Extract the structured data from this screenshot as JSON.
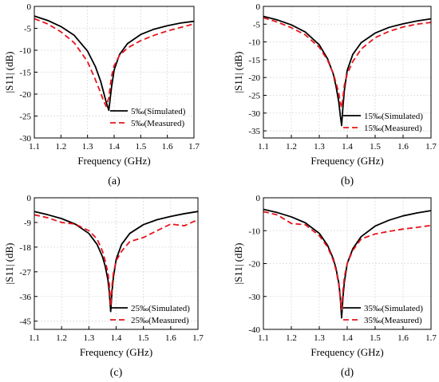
{
  "chart_data": [
    {
      "type": "line",
      "panel_label": "(a)",
      "xlabel": "Frequency (GHz)",
      "ylabel": "|S11| (dB)",
      "xlim": [
        1.1,
        1.7
      ],
      "ylim": [
        -30,
        0
      ],
      "xticks": [
        1.1,
        1.2,
        1.3,
        1.4,
        1.5,
        1.6,
        1.7
      ],
      "yticks": [
        0,
        -5,
        -10,
        -15,
        -20,
        -25,
        -30
      ],
      "grid": true,
      "legend_position": "bottom-right",
      "series": [
        {
          "name": "5‰(Simulated)",
          "style": "solid",
          "color": "#000000",
          "x": [
            1.1,
            1.15,
            1.2,
            1.25,
            1.3,
            1.33,
            1.35,
            1.36,
            1.37,
            1.38,
            1.39,
            1.4,
            1.42,
            1.45,
            1.5,
            1.55,
            1.6,
            1.65,
            1.7
          ],
          "y": [
            -2.2,
            -3.2,
            -4.6,
            -6.6,
            -10.2,
            -13.8,
            -17.2,
            -19.5,
            -21.8,
            -23.7,
            -18.5,
            -14.5,
            -11.0,
            -8.5,
            -6.4,
            -5.2,
            -4.4,
            -3.8,
            -3.4
          ]
        },
        {
          "name": "5‰(Measured)",
          "style": "dashed",
          "color": "#e8141c",
          "x": [
            1.1,
            1.15,
            1.2,
            1.25,
            1.3,
            1.33,
            1.35,
            1.36,
            1.37,
            1.38,
            1.39,
            1.4,
            1.42,
            1.45,
            1.5,
            1.55,
            1.6,
            1.65,
            1.7
          ],
          "y": [
            -2.8,
            -4.0,
            -5.8,
            -8.3,
            -12.6,
            -16.8,
            -19.8,
            -21.5,
            -22.8,
            -20.8,
            -16.0,
            -13.5,
            -11.2,
            -9.5,
            -7.8,
            -6.6,
            -5.6,
            -4.8,
            -4.0
          ]
        }
      ]
    },
    {
      "type": "line",
      "panel_label": "(b)",
      "xlabel": "Frequency (GHz)",
      "ylabel": "|S11| (dB)",
      "xlim": [
        1.1,
        1.7
      ],
      "ylim": [
        -37,
        0
      ],
      "xticks": [
        1.1,
        1.2,
        1.3,
        1.4,
        1.5,
        1.6,
        1.7
      ],
      "yticks": [
        0,
        -5,
        -10,
        -15,
        -20,
        -25,
        -30,
        -35
      ],
      "grid": true,
      "legend_position": "bottom-right",
      "series": [
        {
          "name": "15‰(Simulated)",
          "style": "solid",
          "color": "#000000",
          "x": [
            1.1,
            1.15,
            1.2,
            1.25,
            1.3,
            1.33,
            1.35,
            1.36,
            1.37,
            1.375,
            1.38,
            1.385,
            1.39,
            1.4,
            1.42,
            1.45,
            1.5,
            1.55,
            1.6,
            1.65,
            1.7
          ],
          "y": [
            -2.8,
            -3.8,
            -5.2,
            -7.2,
            -10.8,
            -14.8,
            -19.0,
            -22.5,
            -27.0,
            -30.5,
            -33.5,
            -28.0,
            -23.5,
            -18.0,
            -13.5,
            -10.2,
            -7.5,
            -5.9,
            -4.9,
            -4.1,
            -3.5
          ]
        },
        {
          "name": "15‰(Measured)",
          "style": "dashed",
          "color": "#e8141c",
          "x": [
            1.1,
            1.15,
            1.2,
            1.25,
            1.3,
            1.33,
            1.35,
            1.36,
            1.37,
            1.375,
            1.38,
            1.385,
            1.39,
            1.4,
            1.42,
            1.45,
            1.5,
            1.55,
            1.6,
            1.65,
            1.7
          ],
          "y": [
            -3.2,
            -4.4,
            -6.0,
            -8.0,
            -11.5,
            -15.2,
            -18.8,
            -21.5,
            -24.5,
            -27.0,
            -28.5,
            -25.5,
            -22.0,
            -19.0,
            -15.5,
            -12.0,
            -8.8,
            -7.0,
            -5.8,
            -5.0,
            -4.5
          ]
        }
      ]
    },
    {
      "type": "line",
      "panel_label": "(c)",
      "xlabel": "Frequency (GHz)",
      "ylabel": "|S11| (dB)",
      "xlim": [
        1.1,
        1.7
      ],
      "ylim": [
        -48,
        0
      ],
      "xticks": [
        1.1,
        1.2,
        1.3,
        1.4,
        1.5,
        1.6,
        1.7
      ],
      "yticks": [
        0,
        -9,
        -18,
        -27,
        -36,
        -45
      ],
      "grid": true,
      "legend_position": "bottom-right",
      "series": [
        {
          "name": "25‰(Simulated)",
          "style": "solid",
          "color": "#000000",
          "x": [
            1.1,
            1.15,
            1.2,
            1.25,
            1.3,
            1.33,
            1.35,
            1.36,
            1.37,
            1.375,
            1.38,
            1.385,
            1.39,
            1.4,
            1.42,
            1.45,
            1.5,
            1.55,
            1.6,
            1.65,
            1.7
          ],
          "y": [
            -5.0,
            -6.2,
            -7.6,
            -9.6,
            -13.0,
            -17.0,
            -21.5,
            -25.0,
            -30.0,
            -34.5,
            -41.5,
            -34.0,
            -29.0,
            -22.5,
            -17.0,
            -13.0,
            -9.8,
            -8.0,
            -6.8,
            -5.8,
            -5.0
          ]
        },
        {
          "name": "25‰(Measured)",
          "style": "dashed",
          "color": "#e8141c",
          "x": [
            1.1,
            1.15,
            1.2,
            1.25,
            1.3,
            1.33,
            1.35,
            1.36,
            1.37,
            1.375,
            1.38,
            1.385,
            1.39,
            1.4,
            1.42,
            1.45,
            1.5,
            1.55,
            1.6,
            1.65,
            1.7
          ],
          "y": [
            -6.2,
            -7.3,
            -9.0,
            -9.6,
            -12.0,
            -15.0,
            -19.5,
            -23.0,
            -27.5,
            -31.5,
            -39.5,
            -32.0,
            -27.5,
            -23.0,
            -19.5,
            -16.0,
            -14.5,
            -12.0,
            -9.6,
            -10.2,
            -8.0
          ]
        }
      ]
    },
    {
      "type": "line",
      "panel_label": "(d)",
      "xlabel": "Frequency (GHz)",
      "ylabel": "|S11| (dB)",
      "xlim": [
        1.1,
        1.7
      ],
      "ylim": [
        -40,
        0
      ],
      "xticks": [
        1.1,
        1.2,
        1.3,
        1.4,
        1.5,
        1.6,
        1.7
      ],
      "yticks": [
        0,
        -10,
        -20,
        -30,
        -40
      ],
      "grid": true,
      "legend_position": "bottom-right",
      "series": [
        {
          "name": "35‰(Simulated)",
          "style": "solid",
          "color": "#000000",
          "x": [
            1.1,
            1.15,
            1.2,
            1.25,
            1.3,
            1.33,
            1.35,
            1.36,
            1.37,
            1.375,
            1.38,
            1.385,
            1.39,
            1.4,
            1.42,
            1.45,
            1.5,
            1.55,
            1.6,
            1.65,
            1.7
          ],
          "y": [
            -3.5,
            -4.5,
            -5.8,
            -7.6,
            -10.8,
            -14.5,
            -18.5,
            -21.5,
            -26.0,
            -30.0,
            -36.5,
            -30.0,
            -25.5,
            -20.0,
            -15.5,
            -11.8,
            -8.6,
            -6.8,
            -5.5,
            -4.6,
            -3.9
          ]
        },
        {
          "name": "35‰(Measured)",
          "style": "dashed",
          "color": "#e8141c",
          "x": [
            1.1,
            1.15,
            1.2,
            1.25,
            1.3,
            1.33,
            1.35,
            1.36,
            1.37,
            1.375,
            1.38,
            1.385,
            1.39,
            1.4,
            1.42,
            1.45,
            1.5,
            1.55,
            1.6,
            1.65,
            1.7
          ],
          "y": [
            -4.2,
            -5.2,
            -7.8,
            -8.2,
            -11.5,
            -15.0,
            -19.0,
            -22.0,
            -26.5,
            -30.5,
            -34.0,
            -28.0,
            -24.0,
            -20.0,
            -16.0,
            -12.5,
            -11.0,
            -10.2,
            -9.5,
            -9.0,
            -8.4
          ]
        }
      ]
    }
  ]
}
